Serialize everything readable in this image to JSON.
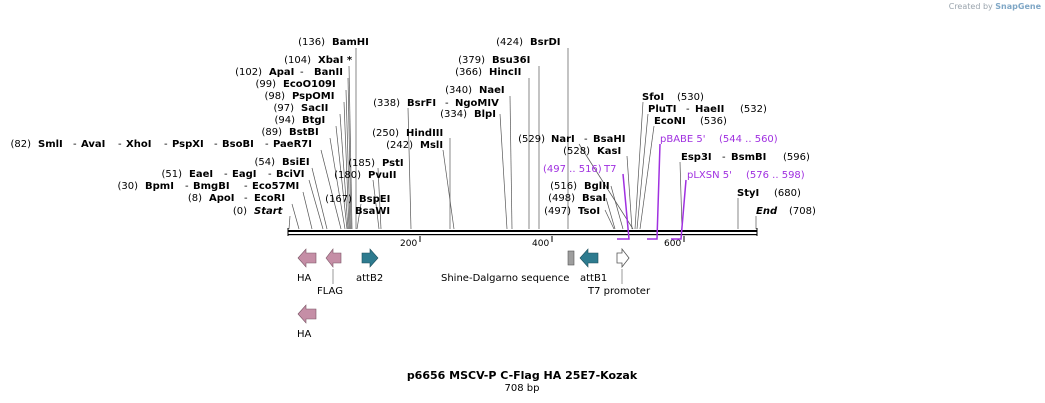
{
  "credit": {
    "prefix": "Created by",
    "app": "SnapGene"
  },
  "title": "p6656 MSCV-P C-Flag HA 25E7-Kozak",
  "length": "708 bp",
  "ticks": [
    "200",
    "400",
    "600"
  ],
  "sites": [
    {
      "num": "(136)",
      "names": [
        "BamHI"
      ]
    },
    {
      "num": "(104)",
      "names": [
        "XbaI *"
      ]
    },
    {
      "num": "(102)",
      "names": [
        "ApaI",
        "BanII"
      ]
    },
    {
      "num": "(99)",
      "names": [
        "EcoO109I"
      ]
    },
    {
      "num": "(98)",
      "names": [
        "PspOMI"
      ]
    },
    {
      "num": "(97)",
      "names": [
        "SacII"
      ]
    },
    {
      "num": "(94)",
      "names": [
        "BtgI"
      ]
    },
    {
      "num": "(89)",
      "names": [
        "BstBI"
      ]
    },
    {
      "num": "(82)",
      "names": [
        "SmlI",
        "AvaI",
        "XhoI",
        "PspXI",
        "BsoBI",
        "PaeR7I"
      ]
    },
    {
      "num": "(54)",
      "names": [
        "BsiEI"
      ]
    },
    {
      "num": "(51)",
      "names": [
        "EaeI",
        "EagI",
        "BciVI"
      ]
    },
    {
      "num": "(30)",
      "names": [
        "BpmI",
        "BmgBI",
        "Eco57MI"
      ]
    },
    {
      "num": "(8)",
      "names": [
        "ApoI",
        "EcoRI"
      ]
    },
    {
      "num": "(0)",
      "names": [
        "Start"
      ]
    },
    {
      "num": "(185)",
      "names": [
        "PstI"
      ]
    },
    {
      "num": "(180)",
      "names": [
        "PvuII"
      ]
    },
    {
      "num": "(167)",
      "names": [
        "BspEI"
      ]
    },
    {
      "num": "",
      "names": [
        "BsaWI"
      ]
    },
    {
      "num": "(338)",
      "names": [
        "BsrFI",
        "NgoMIV"
      ]
    },
    {
      "num": "(250)",
      "names": [
        "HindIII"
      ]
    },
    {
      "num": "(242)",
      "names": [
        "MslI"
      ]
    },
    {
      "num": "(424)",
      "names": [
        "BsrDI"
      ]
    },
    {
      "num": "(379)",
      "names": [
        "Bsu36I"
      ]
    },
    {
      "num": "(366)",
      "names": [
        "HincII"
      ]
    },
    {
      "num": "(340)",
      "names": [
        "NaeI"
      ]
    },
    {
      "num": "(334)",
      "names": [
        "BlpI"
      ]
    },
    {
      "num": "(529)",
      "names": [
        "NarI",
        "BsaHI"
      ]
    },
    {
      "num": "(528)",
      "names": [
        "KasI"
      ]
    },
    {
      "num": "(516)",
      "names": [
        "BglII"
      ]
    },
    {
      "num": "(498)",
      "names": [
        "BsaI"
      ]
    },
    {
      "num": "(497)",
      "names": [
        "TsoI"
      ]
    },
    {
      "num": "(530)",
      "names": [
        "SfoI"
      ]
    },
    {
      "num": "(532)",
      "names": [
        "PluTI",
        "HaeII"
      ]
    },
    {
      "num": "(536)",
      "names": [
        "EcoNI"
      ]
    },
    {
      "num": "(596)",
      "names": [
        "Esp3I",
        "BsmBI"
      ]
    },
    {
      "num": "(680)",
      "names": [
        "StyI"
      ]
    },
    {
      "num": "(708)",
      "names": [
        "End"
      ]
    }
  ],
  "primers": [
    {
      "name": "T7",
      "range": "(497 .. 516)"
    },
    {
      "name": "pBABE 5'",
      "range": "(544 .. 560)"
    },
    {
      "name": "pLXSN 5'",
      "range": "(576 .. 598)"
    }
  ],
  "features": [
    {
      "name": "HA"
    },
    {
      "name": "FLAG"
    },
    {
      "name": "attB2"
    },
    {
      "name": "Shine-Dalgarno sequence"
    },
    {
      "name": "attB1"
    },
    {
      "name": "T7 promoter"
    },
    {
      "name": "HA"
    }
  ],
  "colors": {
    "pink": "#c58ea6",
    "teal": "#2e7b8f",
    "grey": "#9e9e9e",
    "purple": "#a030e0"
  }
}
